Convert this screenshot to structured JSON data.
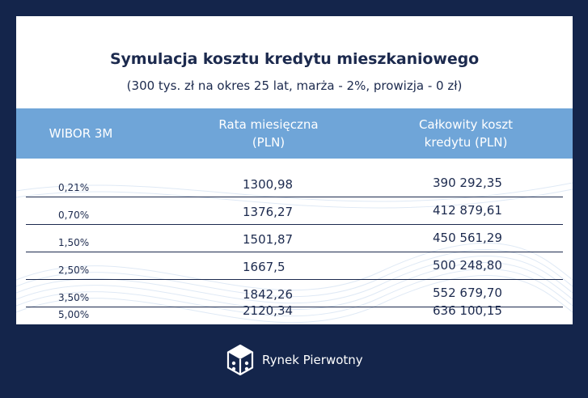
{
  "title": "Symulacja kosztu kredytu mieszkaniowego",
  "subtitle": "(300 tys. zł na okres 25 lat, marża - 2%, prowizja - 0 zł)",
  "columns": {
    "rate": "WIBOR 3M",
    "monthly_line1": "Rata miesięczna",
    "monthly_line2": "(PLN)",
    "total_line1": "Całkowity koszt",
    "total_line2": "kredytu (PLN)"
  },
  "rows": [
    {
      "wibor": "0,21%",
      "monthly": "1300,98",
      "total": "390 292,35"
    },
    {
      "wibor": "0,70%",
      "monthly": "1376,27",
      "total": "412 879,61"
    },
    {
      "wibor": "1,50%",
      "monthly": "1501,87",
      "total": "450 561,29"
    },
    {
      "wibor": "2,50%",
      "monthly": "1667,5",
      "total": "500 248,80"
    },
    {
      "wibor": "3,50%",
      "monthly": "1842,26",
      "total": "552 679,70"
    },
    {
      "wibor": "5,00%",
      "monthly": "2120,34",
      "total": "636 100,15"
    }
  ],
  "footer": {
    "brand": "Rynek Pierwotny",
    "logo_icon": "rynek-pierwotny-logo-icon"
  },
  "colors": {
    "background": "#14254b",
    "header_band": "#6fa5d8",
    "text": "#1c2a4e"
  }
}
